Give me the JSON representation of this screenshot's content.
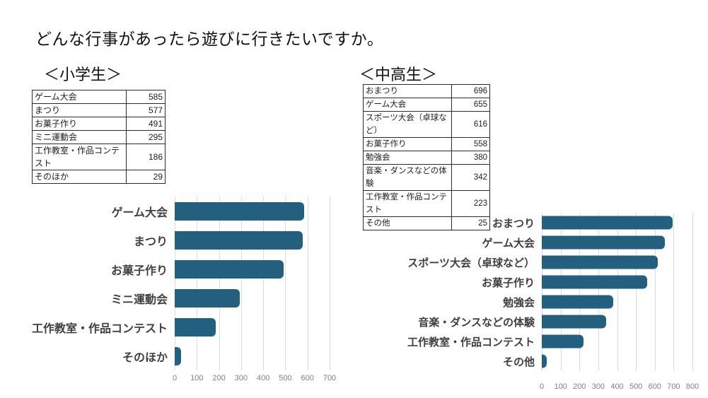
{
  "title": "どんな行事があったら遊びに行きたいですか。",
  "colors": {
    "bar": "#23607F",
    "gridline": "#DCDCDC",
    "axis_text": "#7F7F7F",
    "category_text": "#404040",
    "table_border": "#2B2B2B"
  },
  "sections": [
    {
      "heading": "＜小学生＞",
      "table": {
        "rows": [
          {
            "label": "ゲーム大会",
            "value": "585"
          },
          {
            "label": "まつり",
            "value": "577"
          },
          {
            "label": "お菓子作り",
            "value": "491"
          },
          {
            "label": "ミニ運動会",
            "value": "295"
          },
          {
            "label": "工作教室・作品コンテスト",
            "value": "186"
          },
          {
            "label": "そのほか",
            "value": "29"
          }
        ]
      }
    },
    {
      "heading": "＜中高生＞",
      "table": {
        "rows": [
          {
            "label": "おまつり",
            "value": "696"
          },
          {
            "label": "ゲーム大会",
            "value": "655"
          },
          {
            "label": "スポーツ大会（卓球など）",
            "value": "616"
          },
          {
            "label": "お菓子作り",
            "value": "558"
          },
          {
            "label": "勉強会",
            "value": "380"
          },
          {
            "label": "音楽・ダンスなどの体験",
            "value": "342"
          },
          {
            "label": "工作教室・作品コンテスト",
            "value": "223"
          },
          {
            "label": "その他",
            "value": "25"
          }
        ]
      }
    }
  ],
  "chart_data": [
    {
      "type": "bar",
      "orientation": "horizontal",
      "title": "＜小学生＞",
      "categories": [
        "ゲーム大会",
        "まつり",
        "お菓子作り",
        "ミニ運動会",
        "工作教室・作品コンテスト",
        "そのほか"
      ],
      "values": [
        585,
        577,
        491,
        295,
        186,
        29
      ],
      "xlabel": "",
      "ylabel": "",
      "xlim": [
        0,
        700
      ],
      "xticks": [
        0,
        100,
        200,
        300,
        400,
        500,
        600,
        700
      ],
      "bar_color": "#23607F",
      "grid": true,
      "legend": "none"
    },
    {
      "type": "bar",
      "orientation": "horizontal",
      "title": "＜中高生＞",
      "categories": [
        "おまつり",
        "ゲーム大会",
        "スポーツ大会（卓球など）",
        "お菓子作り",
        "勉強会",
        "音楽・ダンスなどの体験",
        "工作教室・作品コンテスト",
        "その他"
      ],
      "values": [
        696,
        655,
        616,
        558,
        380,
        342,
        223,
        25
      ],
      "xlabel": "",
      "ylabel": "",
      "xlim": [
        0,
        800
      ],
      "xticks": [
        0,
        100,
        200,
        300,
        400,
        500,
        600,
        700,
        800
      ],
      "bar_color": "#23607F",
      "grid": true,
      "legend": "none"
    }
  ]
}
